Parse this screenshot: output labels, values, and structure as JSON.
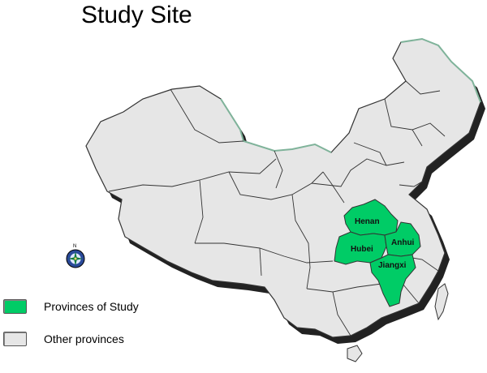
{
  "title": "Study Site",
  "colors": {
    "study": "#00cc66",
    "other": "#e6e6e6",
    "border": "#333333",
    "coast": "#7fb39a"
  },
  "study_provinces": [
    "Henan",
    "Hubei",
    "Anhui",
    "Jiangxi"
  ],
  "legend": [
    {
      "label": "Provinces of Study",
      "color": "#00cc66"
    },
    {
      "label": "Other provinces",
      "color": "#e6e6e6"
    }
  ],
  "compass": {
    "label": "N"
  }
}
